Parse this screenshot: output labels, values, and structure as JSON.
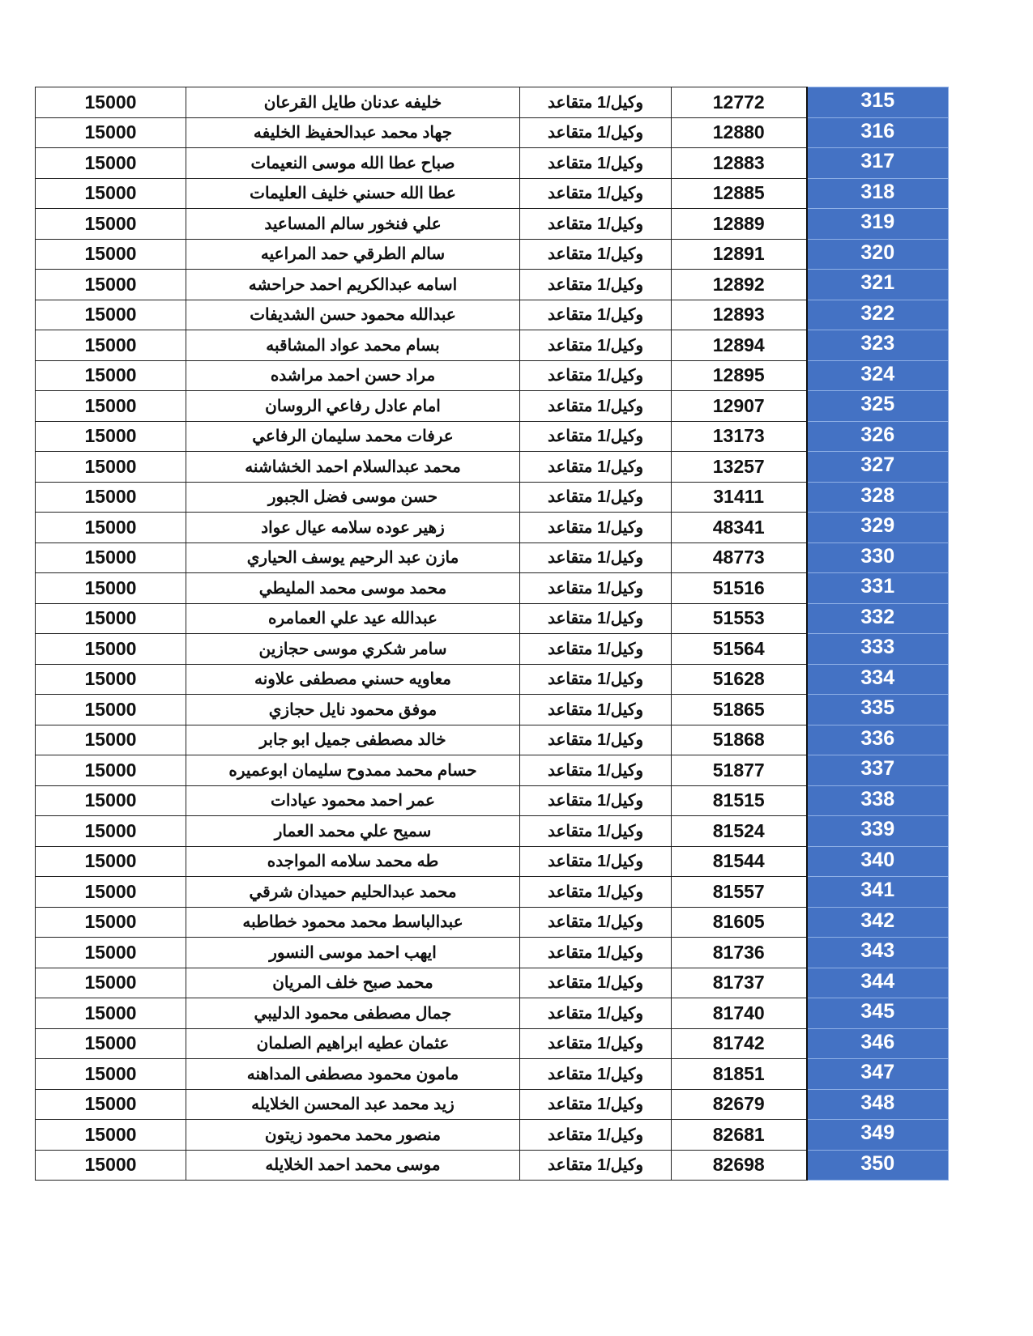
{
  "seq_color": "#4472C4",
  "rows": [
    {
      "seq": "315",
      "id": "12772",
      "type": "وكيل/1 متقاعد",
      "name": "خليفه عدنان طايل القرعان",
      "amount": "15000"
    },
    {
      "seq": "316",
      "id": "12880",
      "type": "وكيل/1 متقاعد",
      "name": "جهاد محمد عبدالحفيظ الخليفه",
      "amount": "15000"
    },
    {
      "seq": "317",
      "id": "12883",
      "type": "وكيل/1 متقاعد",
      "name": "صباح عطا الله موسى النعيمات",
      "amount": "15000"
    },
    {
      "seq": "318",
      "id": "12885",
      "type": "وكيل/1 متقاعد",
      "name": "عطا الله حسني خليف العليمات",
      "amount": "15000"
    },
    {
      "seq": "319",
      "id": "12889",
      "type": "وكيل/1 متقاعد",
      "name": "علي فنخور سالم المساعيد",
      "amount": "15000"
    },
    {
      "seq": "320",
      "id": "12891",
      "type": "وكيل/1 متقاعد",
      "name": "سالم الطرقي حمد المراعيه",
      "amount": "15000"
    },
    {
      "seq": "321",
      "id": "12892",
      "type": "وكيل/1 متقاعد",
      "name": "اسامه عبدالكريم احمد حراحشه",
      "amount": "15000"
    },
    {
      "seq": "322",
      "id": "12893",
      "type": "وكيل/1 متقاعد",
      "name": "عبدالله محمود حسن الشديفات",
      "amount": "15000"
    },
    {
      "seq": "323",
      "id": "12894",
      "type": "وكيل/1 متقاعد",
      "name": "بسام محمد عواد المشاقبه",
      "amount": "15000"
    },
    {
      "seq": "324",
      "id": "12895",
      "type": "وكيل/1 متقاعد",
      "name": "مراد حسن احمد مراشده",
      "amount": "15000"
    },
    {
      "seq": "325",
      "id": "12907",
      "type": "وكيل/1 متقاعد",
      "name": "امام عادل رفاعي الروسان",
      "amount": "15000"
    },
    {
      "seq": "326",
      "id": "13173",
      "type": "وكيل/1 متقاعد",
      "name": "عرفات محمد سليمان الرفاعي",
      "amount": "15000"
    },
    {
      "seq": "327",
      "id": "13257",
      "type": "وكيل/1 متقاعد",
      "name": "محمد عبدالسلام احمد الخشاشنه",
      "amount": "15000"
    },
    {
      "seq": "328",
      "id": "31411",
      "type": "وكيل/1 متقاعد",
      "name": "حسن موسى فضل الجبور",
      "amount": "15000"
    },
    {
      "seq": "329",
      "id": "48341",
      "type": "وكيل/1 متقاعد",
      "name": "زهير عوده سلامه عيال عواد",
      "amount": "15000"
    },
    {
      "seq": "330",
      "id": "48773",
      "type": "وكيل/1 متقاعد",
      "name": "مازن عبد الرحيم يوسف الحياري",
      "amount": "15000"
    },
    {
      "seq": "331",
      "id": "51516",
      "type": "وكيل/1 متقاعد",
      "name": "محمد موسى محمد المليطي",
      "amount": "15000"
    },
    {
      "seq": "332",
      "id": "51553",
      "type": "وكيل/1 متقاعد",
      "name": "عبدالله عيد علي العمامره",
      "amount": "15000"
    },
    {
      "seq": "333",
      "id": "51564",
      "type": "وكيل/1 متقاعد",
      "name": "سامر شكري موسى حجازين",
      "amount": "15000"
    },
    {
      "seq": "334",
      "id": "51628",
      "type": "وكيل/1 متقاعد",
      "name": "معاويه حسني مصطفى علاونه",
      "amount": "15000"
    },
    {
      "seq": "335",
      "id": "51865",
      "type": "وكيل/1 متقاعد",
      "name": "موفق محمود نايل حجازي",
      "amount": "15000"
    },
    {
      "seq": "336",
      "id": "51868",
      "type": "وكيل/1 متقاعد",
      "name": "خالد مصطفى جميل ابو جابر",
      "amount": "15000"
    },
    {
      "seq": "337",
      "id": "51877",
      "type": "وكيل/1 متقاعد",
      "name": "حسام محمد ممدوح سليمان ابوعميره",
      "amount": "15000"
    },
    {
      "seq": "338",
      "id": "81515",
      "type": "وكيل/1 متقاعد",
      "name": "عمر احمد محمود عيادات",
      "amount": "15000"
    },
    {
      "seq": "339",
      "id": "81524",
      "type": "وكيل/1 متقاعد",
      "name": "سميح علي محمد العمار",
      "amount": "15000"
    },
    {
      "seq": "340",
      "id": "81544",
      "type": "وكيل/1 متقاعد",
      "name": "طه محمد سلامه المواجده",
      "amount": "15000"
    },
    {
      "seq": "341",
      "id": "81557",
      "type": "وكيل/1 متقاعد",
      "name": "محمد عبدالحليم حميدان شرقي",
      "amount": "15000"
    },
    {
      "seq": "342",
      "id": "81605",
      "type": "وكيل/1 متقاعد",
      "name": "عبدالباسط محمد محمود خطاطبه",
      "amount": "15000"
    },
    {
      "seq": "343",
      "id": "81736",
      "type": "وكيل/1 متقاعد",
      "name": "ايهب احمد موسى النسور",
      "amount": "15000"
    },
    {
      "seq": "344",
      "id": "81737",
      "type": "وكيل/1 متقاعد",
      "name": "محمد صبح خلف المريان",
      "amount": "15000"
    },
    {
      "seq": "345",
      "id": "81740",
      "type": "وكيل/1 متقاعد",
      "name": "جمال مصطفى محمود الدليبي",
      "amount": "15000"
    },
    {
      "seq": "346",
      "id": "81742",
      "type": "وكيل/1 متقاعد",
      "name": "عثمان عطيه ابراهيم الصلمان",
      "amount": "15000"
    },
    {
      "seq": "347",
      "id": "81851",
      "type": "وكيل/1 متقاعد",
      "name": "مامون محمود مصطفى المداهنه",
      "amount": "15000"
    },
    {
      "seq": "348",
      "id": "82679",
      "type": "وكيل/1 متقاعد",
      "name": "زيد محمد عبد المحسن الخلايله",
      "amount": "15000"
    },
    {
      "seq": "349",
      "id": "82681",
      "type": "وكيل/1 متقاعد",
      "name": "منصور محمد محمود زيتون",
      "amount": "15000"
    },
    {
      "seq": "350",
      "id": "82698",
      "type": "وكيل/1 متقاعد",
      "name": "موسى محمد احمد الخلايله",
      "amount": "15000"
    }
  ]
}
